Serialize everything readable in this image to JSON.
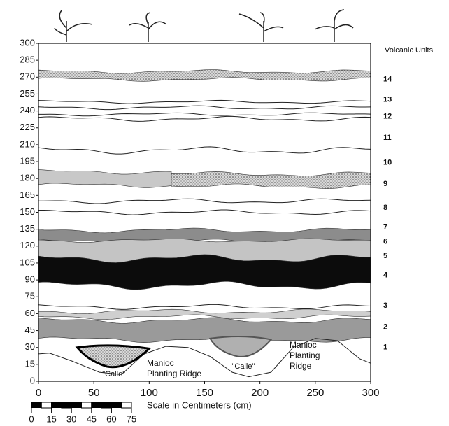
{
  "axes": {
    "xlim": [
      0,
      300
    ],
    "ylim": [
      0,
      300
    ],
    "xticks": [
      0,
      50,
      100,
      150,
      200,
      250,
      300
    ],
    "yticks": [
      0,
      15,
      30,
      45,
      60,
      75,
      90,
      105,
      120,
      135,
      150,
      165,
      180,
      195,
      210,
      225,
      240,
      255,
      270,
      285,
      300
    ]
  },
  "legend_title": "Volcanic Units",
  "units": [
    14,
    13,
    12,
    11,
    10,
    9,
    8,
    7,
    6,
    5,
    4,
    3,
    2,
    1
  ],
  "annotations": {
    "calle_left": "\"Calle\"",
    "calle_right": "\"Calle\"",
    "ridge_left": [
      "Manioc",
      "Planting Ridge"
    ],
    "ridge_right": [
      "Manioc",
      "Planting",
      "Ridge"
    ]
  },
  "scale": {
    "label": "Scale in Centimeters (cm)",
    "ticks": [
      0,
      15,
      30,
      45,
      60,
      75
    ]
  }
}
